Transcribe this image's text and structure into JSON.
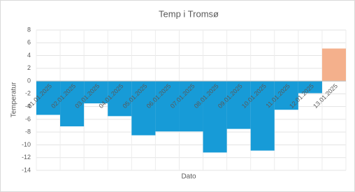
{
  "chart_data": {
    "type": "bar",
    "title": "Temp i Tromsø",
    "x_label": "Dato",
    "y_label": "Temperatur",
    "categories": [
      "01.01.2025",
      "02.01.2025",
      "03.01.2025",
      "04.01.2025",
      "05.01.2025",
      "06.01.2025",
      "07.01.2025",
      "08.01.2025",
      "09.01.2025",
      "10.01.2025",
      "11.01.2025",
      "12.01.2025",
      "13.01.2025"
    ],
    "values": [
      -5.3,
      -7.1,
      -3.5,
      -5.5,
      -8.5,
      -7.9,
      -7.9,
      -11.2,
      -7.5,
      -10.9,
      -4.5,
      -1.9,
      5.1
    ],
    "colors": [
      "#179bd7",
      "#179bd7",
      "#179bd7",
      "#179bd7",
      "#179bd7",
      "#179bd7",
      "#179bd7",
      "#179bd7",
      "#179bd7",
      "#179bd7",
      "#179bd7",
      "#179bd7",
      "#f4b08c"
    ],
    "ylim": [
      -14,
      8
    ],
    "yticks": [
      -14,
      -12,
      -10,
      -8,
      -6,
      -4,
      -2,
      0,
      2,
      4,
      6,
      8
    ],
    "grid": true
  }
}
